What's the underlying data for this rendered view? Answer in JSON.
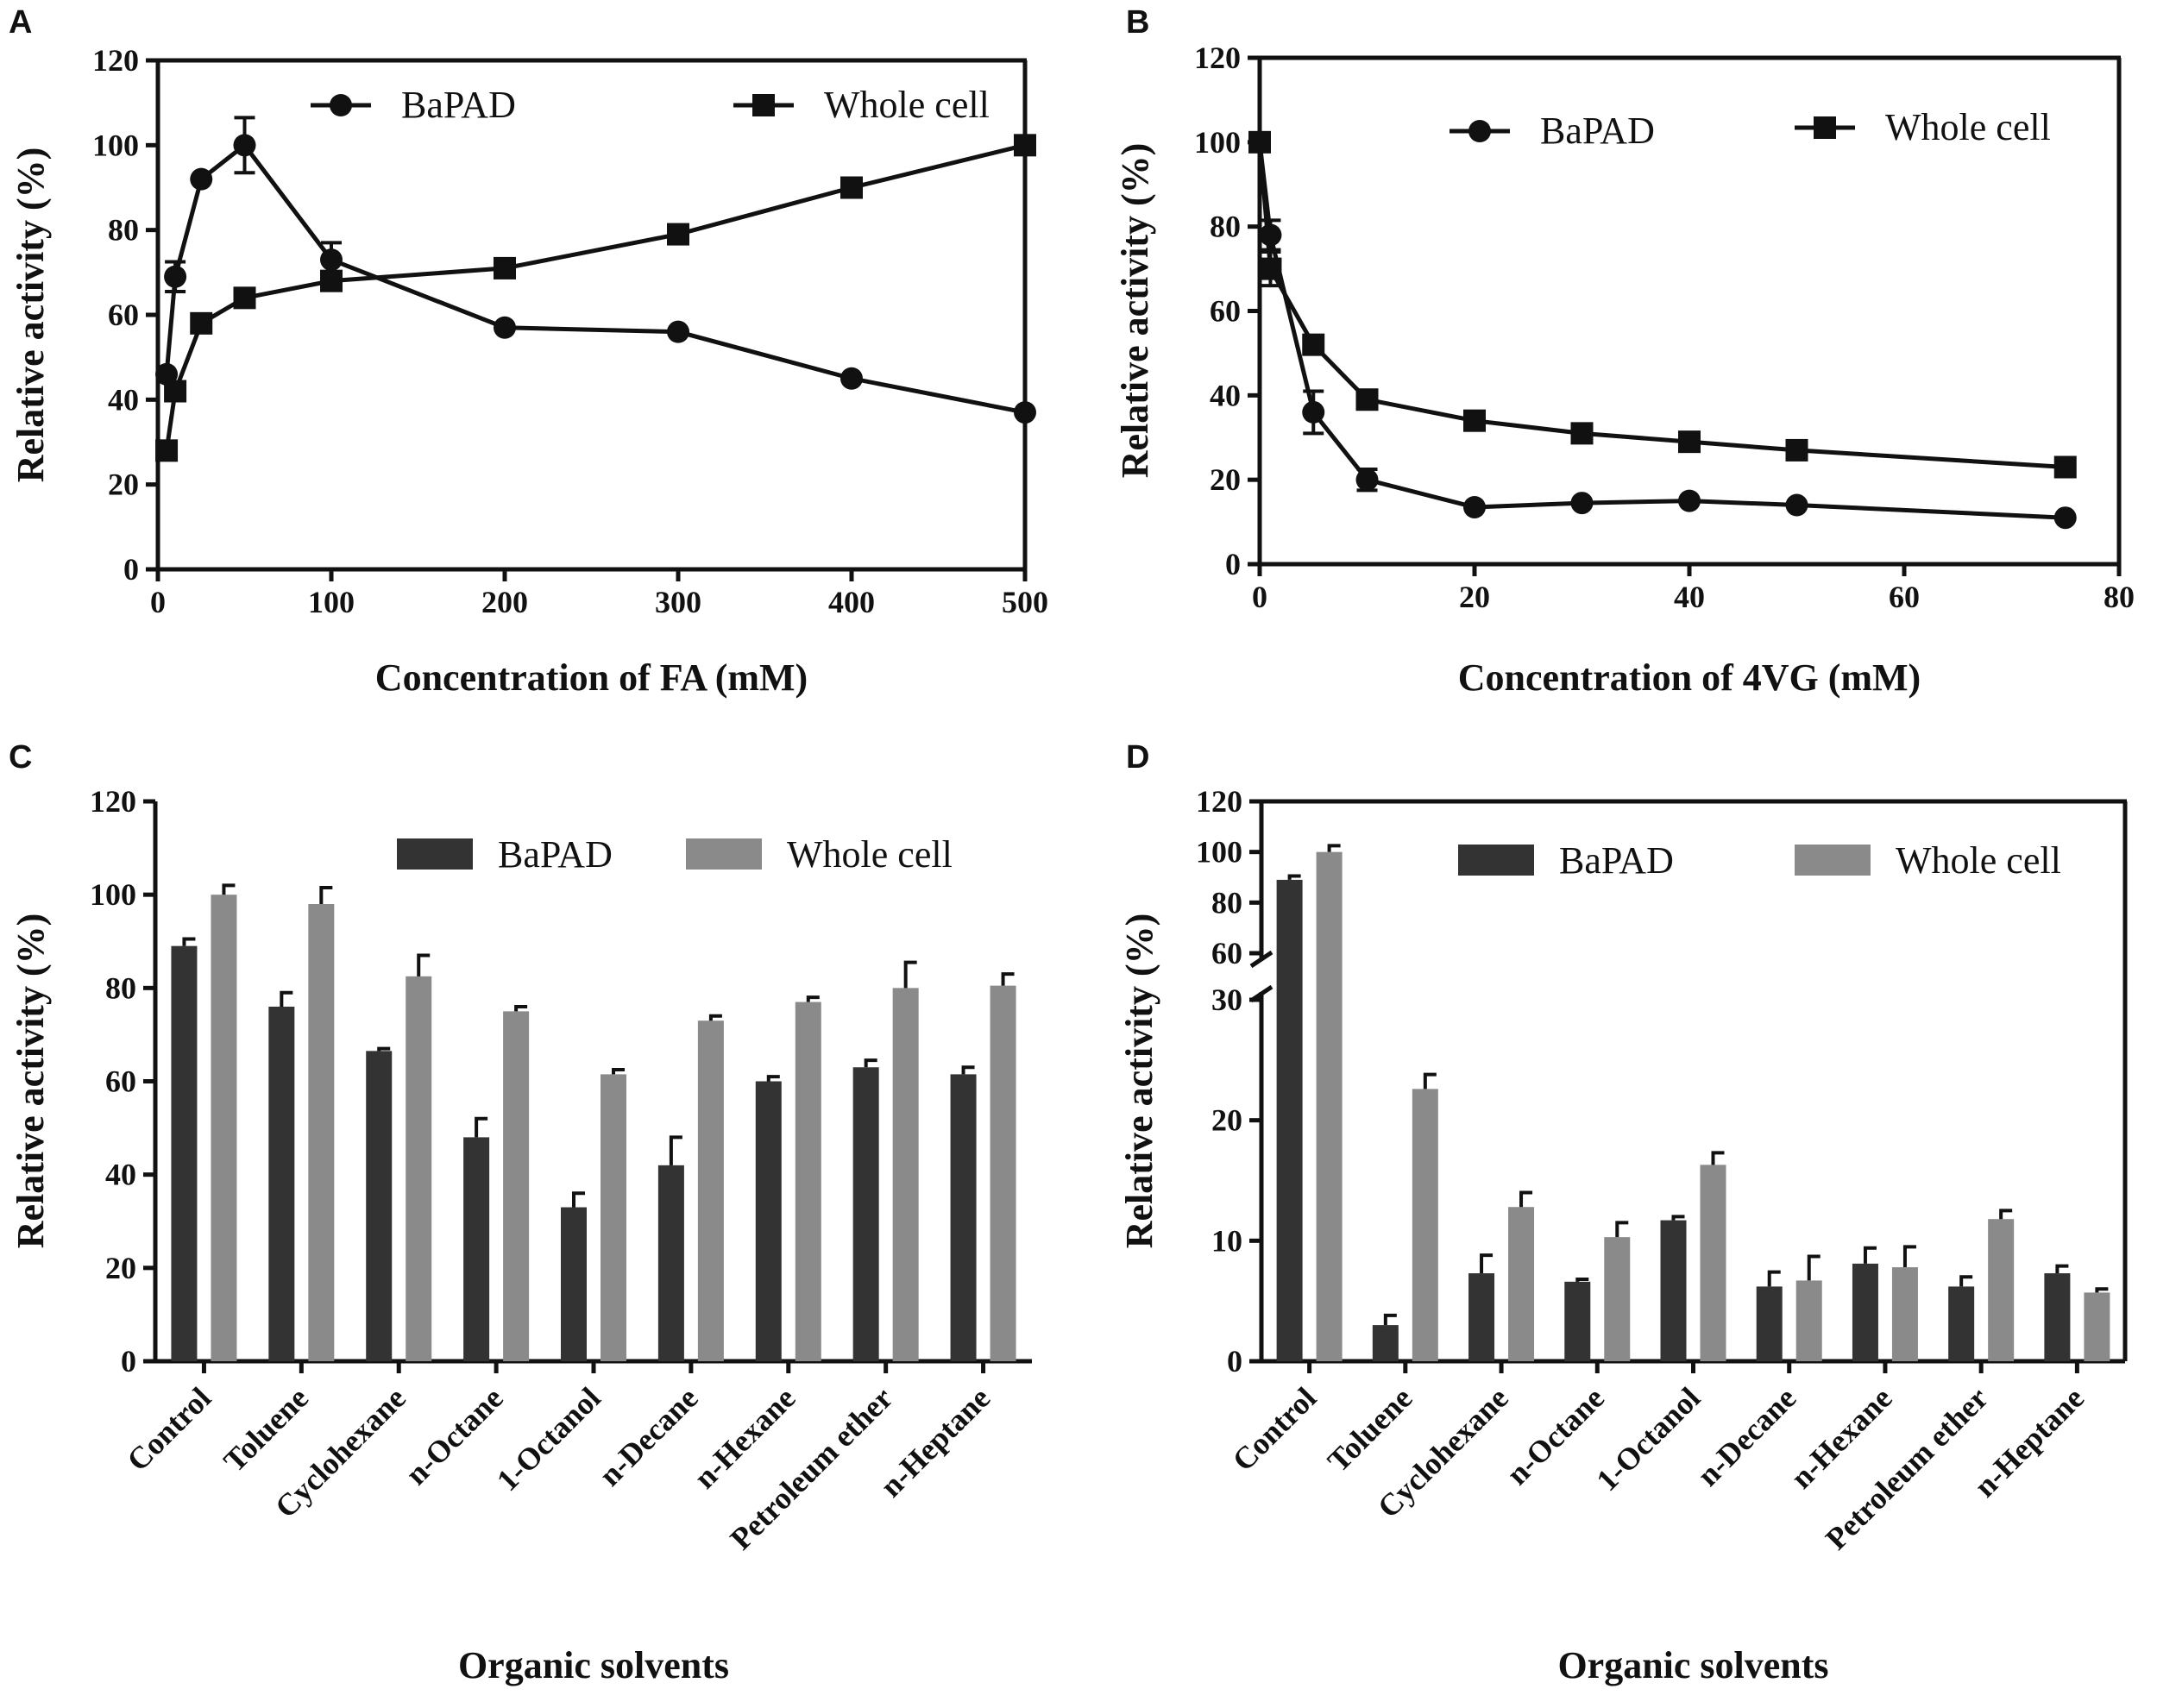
{
  "chart_data": [
    {
      "panel": "A",
      "type": "line",
      "xlabel": "Concentration of FA (mM)",
      "ylabel": "Relative activity (%)",
      "xlim": [
        0,
        500
      ],
      "ylim": [
        0,
        120
      ],
      "xticks": [
        "0",
        "100",
        "200",
        "300",
        "400",
        "500"
      ],
      "yticks": [
        "0",
        "20",
        "40",
        "60",
        "80",
        "100",
        "120"
      ],
      "legend": [
        "BaPAD",
        "Whole cell"
      ],
      "legend_position": "top-right",
      "x": [
        5,
        10,
        25,
        50,
        100,
        200,
        300,
        400,
        500
      ],
      "series": [
        {
          "name": "BaPAD",
          "marker": "circle",
          "values": [
            46,
            69,
            92,
            100,
            73,
            57,
            56,
            45,
            37
          ],
          "error": [
            0,
            3.5,
            0,
            6.5,
            4,
            0,
            0,
            0,
            0
          ]
        },
        {
          "name": "Whole cell",
          "marker": "square",
          "values": [
            28,
            42,
            58,
            64,
            68,
            71,
            79,
            90,
            100
          ],
          "error": [
            0,
            0,
            2,
            0,
            0,
            0,
            0,
            0,
            0
          ]
        }
      ]
    },
    {
      "panel": "B",
      "type": "line",
      "xlabel": "Concentration of 4VG (mM)",
      "ylabel": "Relative activity (%)",
      "xlim": [
        0,
        80
      ],
      "ylim": [
        0,
        120
      ],
      "xticks": [
        "0",
        "20",
        "40",
        "60",
        "80"
      ],
      "yticks": [
        "0",
        "20",
        "40",
        "60",
        "80",
        "100",
        "120"
      ],
      "legend": [
        "BaPAD",
        "Whole cell"
      ],
      "legend_position": "top-right",
      "x": [
        0,
        1,
        5,
        10,
        20,
        30,
        40,
        50,
        75
      ],
      "series": [
        {
          "name": "BaPAD",
          "marker": "circle",
          "values": [
            100,
            78,
            36,
            20,
            13.5,
            14.5,
            15,
            14,
            11
          ],
          "error": [
            0,
            3.5,
            5,
            2.5,
            0,
            0,
            0,
            0,
            0
          ]
        },
        {
          "name": "Whole cell",
          "marker": "square",
          "values": [
            100,
            70,
            52,
            39,
            34,
            31,
            29,
            27,
            23
          ],
          "error": [
            0,
            4,
            0,
            0,
            0,
            0,
            0,
            0,
            0
          ]
        }
      ]
    },
    {
      "panel": "C",
      "type": "bar",
      "xlabel": "Organic solvents",
      "ylabel": "Relative activity (%)",
      "ylim": [
        0,
        120
      ],
      "yticks": [
        "0",
        "20",
        "40",
        "60",
        "80",
        "100",
        "120"
      ],
      "legend": [
        "BaPAD",
        "Whole cell"
      ],
      "legend_position": "top-right",
      "categories": [
        "Control",
        "Toluene",
        "Cyclohexane",
        "n-Octane",
        "1-Octanol",
        "n-Decane",
        "n-Hexane",
        "Petroleum ether",
        "n-Heptane"
      ],
      "series": [
        {
          "name": "BaPAD",
          "color": "#333333",
          "values": [
            89,
            76,
            66.5,
            48,
            33,
            42,
            60,
            63,
            61.5
          ],
          "error": [
            1.5,
            3,
            0.5,
            4,
            3,
            6,
            1,
            1.5,
            1.5
          ]
        },
        {
          "name": "Whole cell",
          "color": "#8a8a8a",
          "values": [
            100,
            98,
            82.5,
            75,
            61.5,
            73,
            77,
            80,
            80.5
          ],
          "error": [
            2,
            3.5,
            4.5,
            1,
            1,
            1,
            1,
            5.5,
            2.5
          ]
        }
      ]
    },
    {
      "panel": "D",
      "type": "bar",
      "xlabel": "Organic solvents",
      "ylabel": "Relative activity (%)",
      "ylim": [
        0,
        120
      ],
      "axis_break": [
        30,
        60
      ],
      "yticks_lower": [
        "0",
        "10",
        "20",
        "30"
      ],
      "yticks_upper": [
        "60",
        "80",
        "100",
        "120"
      ],
      "legend": [
        "BaPAD",
        "Whole cell"
      ],
      "legend_position": "top-right",
      "categories": [
        "Control",
        "Toluene",
        "Cyclohexane",
        "n-Octane",
        "1-Octanol",
        "n-Decane",
        "n-Hexane",
        "Petroleum ether",
        "n-Heptane"
      ],
      "series": [
        {
          "name": "BaPAD",
          "color": "#333333",
          "values": [
            89,
            3,
            7.3,
            6.6,
            11.7,
            6.2,
            8.1,
            6.2,
            7.3
          ],
          "error": [
            1.5,
            0.8,
            1.5,
            0.2,
            0.3,
            1.2,
            1.3,
            0.8,
            0.6
          ]
        },
        {
          "name": "Whole cell",
          "color": "#8a8a8a",
          "values": [
            100,
            22.6,
            12.8,
            10.3,
            16.3,
            6.7,
            7.8,
            11.8,
            5.7
          ],
          "error": [
            2.5,
            1.2,
            1.2,
            1.2,
            1,
            2,
            1.7,
            0.7,
            0.3
          ]
        }
      ]
    }
  ]
}
